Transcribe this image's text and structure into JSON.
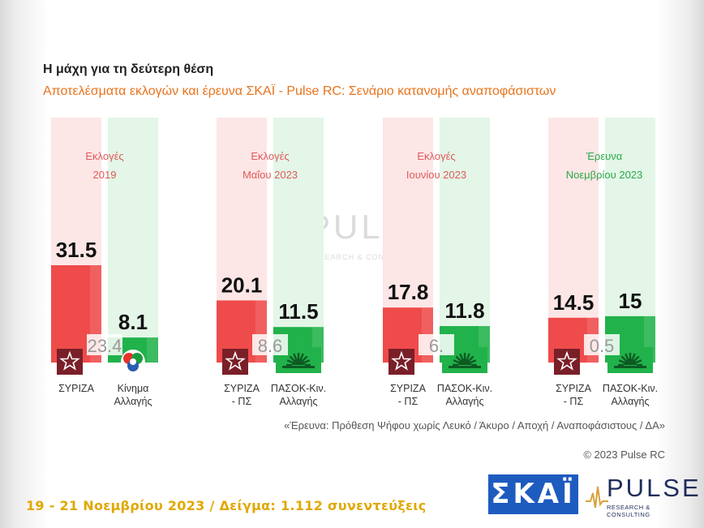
{
  "header": {
    "title": "Η μάχη για τη δεύτερη θέση",
    "subtitle": "Αποτελέσματα εκλογών και έρευνα ΣΚΑΪ - Pulse RC: Σενάριο κατανομής αναποφάσιστων"
  },
  "chart_data": {
    "type": "bar",
    "groups": [
      {
        "period_lines": [
          "Εκλογές",
          "2019"
        ],
        "difference_label": "23.4",
        "bars": [
          {
            "party": "syriza",
            "value": 31.5,
            "value_label": "31.5",
            "label_lines": [
              "ΣΥΡΙΖΑ"
            ]
          },
          {
            "party": "kinal",
            "value": 8.1,
            "value_label": "8.1",
            "label_lines": [
              "Κίνημα",
              "Αλλαγής"
            ]
          }
        ]
      },
      {
        "period_lines": [
          "Εκλογές",
          "Μαΐου 2023"
        ],
        "difference_label": "8.6",
        "bars": [
          {
            "party": "syriza",
            "value": 20.1,
            "value_label": "20.1",
            "label_lines": [
              "ΣΥΡΙΖΑ",
              "- ΠΣ"
            ]
          },
          {
            "party": "pasok",
            "value": 11.5,
            "value_label": "11.5",
            "label_lines": [
              "ΠΑΣΟΚ-Κιν.",
              "Αλλαγής"
            ]
          }
        ]
      },
      {
        "period_lines": [
          "Εκλογές",
          "Ιουνίου 2023"
        ],
        "difference_label": "6.",
        "bars": [
          {
            "party": "syriza",
            "value": 17.8,
            "value_label": "17.8",
            "label_lines": [
              "ΣΥΡΙΖΑ",
              "- ΠΣ"
            ]
          },
          {
            "party": "pasok",
            "value": 11.8,
            "value_label": "11.8",
            "label_lines": [
              "ΠΑΣΟΚ-Κιν.",
              "Αλλαγής"
            ]
          }
        ]
      },
      {
        "period_lines": [
          "Έρευνα",
          "Νοεμβρίου 2023"
        ],
        "difference_label": "0.5",
        "bars": [
          {
            "party": "syriza",
            "value": 14.5,
            "value_label": "14.5",
            "label_lines": [
              "ΣΥΡΙΖΑ",
              "- ΠΣ"
            ]
          },
          {
            "party": "pasok",
            "value": 15,
            "value_label": "15",
            "label_lines": [
              "ΠΑΣΟΚ-Κιν.",
              "Αλλαγής"
            ]
          }
        ]
      }
    ],
    "ylim": [
      0,
      33
    ],
    "colors": {
      "syriza_bar": "#ef4b4b",
      "syriza_bg": "#fde6e6",
      "pasok_bar": "#21b24b",
      "pasok_bg": "#e3f6e7",
      "period_red": "#e05a5a",
      "period_green": "#2aa84a",
      "difference_text": "#9a9a9a"
    },
    "grid": false,
    "legend": "none"
  },
  "watermark": {
    "text": "PULSE",
    "subtext": "RESEARCH & CONSULTING"
  },
  "footer": {
    "note": "«Έρευνα: Πρόθεση Ψήφου χωρίς Λευκό / Άκυρο / Αποχή / Αναποφάσιστους / ΔΑ»",
    "copyright": "© 2023 Pulse RC",
    "date_sample": "19 - 21  Νοεμβρίου  2023  /  Δείγμα:  1.112 συνεντεύξεις",
    "skai_logo": "ΣΚΑΪ",
    "pulse_logo": "PULSE",
    "pulse_logo_sub": "RESEARCH & CONSULTING"
  },
  "icons": {
    "syriza": "syriza-star-icon",
    "kinal": "kinima-allagis-icon",
    "pasok": "pasok-sun-icon"
  }
}
